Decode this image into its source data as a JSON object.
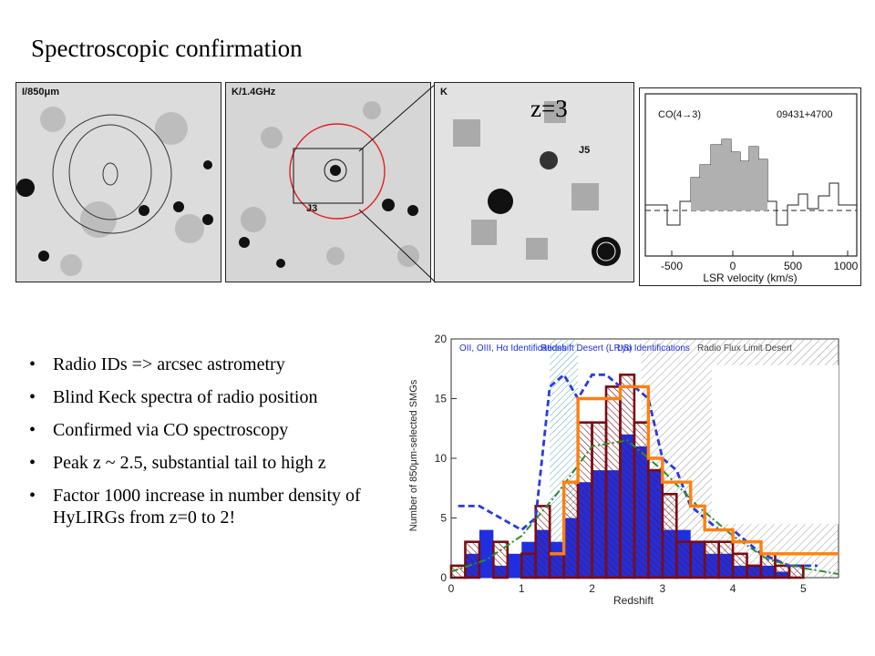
{
  "slide": {
    "title": "Spectroscopic confirmation",
    "redshift_label": "z=3"
  },
  "panels": {
    "p1_label": "I/850μm",
    "p2_label": "K/1.4GHz",
    "p2_source": "J3",
    "p3_label": "K",
    "p3_source": "J5"
  },
  "co_spectrum": {
    "line": "CO(4→3)",
    "source": "09431+4700",
    "xlabel": "LSR velocity (km/s)",
    "ticks": [
      "-500",
      "0",
      "500",
      "1000"
    ]
  },
  "bullets": [
    "Radio IDs => arcsec astrometry",
    "Blind Keck spectra of radio position",
    "Confirmed via CO spectroscopy",
    "Peak z ~ 2.5,  substantial tail to high z",
    "Factor 1000 increase in number density of HyLIRGs from z=0 to 2!"
  ],
  "chart_data": {
    "type": "bar",
    "xlabel": "Redshift",
    "ylabel": "Number of 850μm-selected SMGs",
    "xlim": [
      0,
      5.5
    ],
    "ylim": [
      0,
      20
    ],
    "xticks": [
      "0",
      "1",
      "2",
      "3",
      "4",
      "5"
    ],
    "yticks": [
      "0",
      "5",
      "10",
      "15",
      "20"
    ],
    "annotations": [
      "OII, OIII, Hα Identifications",
      "Redshift Desert (LRIS)",
      "Lyα Identifications",
      "Radio Flux Limit Desert"
    ],
    "bin_width": 0.2,
    "bin_starts": [
      0.0,
      0.2,
      0.4,
      0.6,
      0.8,
      1.0,
      1.2,
      1.4,
      1.6,
      1.8,
      2.0,
      2.2,
      2.4,
      2.6,
      2.8,
      3.0,
      3.2,
      3.4,
      3.6,
      3.8,
      4.0,
      4.2,
      4.4,
      4.6,
      4.8,
      5.0,
      5.2
    ],
    "series": [
      {
        "values": [
          0,
          2,
          4,
          1,
          2,
          3,
          4,
          3,
          5,
          8,
          9,
          9,
          12,
          11,
          9,
          4,
          4,
          3,
          2,
          2,
          1,
          1,
          1,
          0.5,
          0,
          0,
          0
        ],
        "color": "#1f2fe0"
      },
      {
        "values": [
          1,
          3,
          0,
          3,
          0,
          2,
          6,
          2,
          8,
          13,
          13,
          16,
          17,
          13,
          9,
          7,
          3,
          3,
          3,
          3,
          2,
          1,
          2,
          1,
          1,
          0,
          0
        ],
        "color": "#7a0c12"
      }
    ],
    "lines": [
      {
        "style": "dashed",
        "color": "#2a3adf",
        "x": [
          0.1,
          0.4,
          0.7,
          1.0,
          1.2,
          1.4,
          1.6,
          1.8,
          2.0,
          2.2,
          2.4,
          2.6,
          2.8,
          3.0,
          3.2,
          3.4,
          3.6,
          3.8,
          4.0,
          4.4,
          4.8,
          5.2
        ],
        "y": [
          6,
          6,
          5,
          4,
          5,
          16,
          17,
          15,
          17,
          17,
          16,
          16,
          15,
          10,
          9,
          6,
          5,
          4,
          4,
          2,
          1,
          1
        ]
      },
      {
        "style": "dashdot",
        "color": "#2e8b2e",
        "x": [
          0.0,
          0.5,
          1.0,
          1.5,
          2.0,
          2.5,
          3.0,
          3.5,
          4.0,
          4.5,
          5.0,
          5.5
        ],
        "y": [
          0.5,
          1.5,
          3.5,
          7,
          11,
          11.5,
          9,
          6,
          3.5,
          1.5,
          0.8,
          0.3
        ]
      },
      {
        "style": "step",
        "color": "#ff7f0f",
        "x": [
          1.4,
          1.6,
          1.8,
          2.0,
          2.4,
          2.8,
          3.0,
          3.2,
          3.4,
          3.6,
          3.8,
          4.0,
          4.4,
          5.0,
          5.5
        ],
        "y": [
          2,
          8,
          15,
          15,
          16,
          10,
          8,
          8,
          6,
          4,
          4,
          3,
          2,
          2,
          2
        ]
      }
    ]
  }
}
